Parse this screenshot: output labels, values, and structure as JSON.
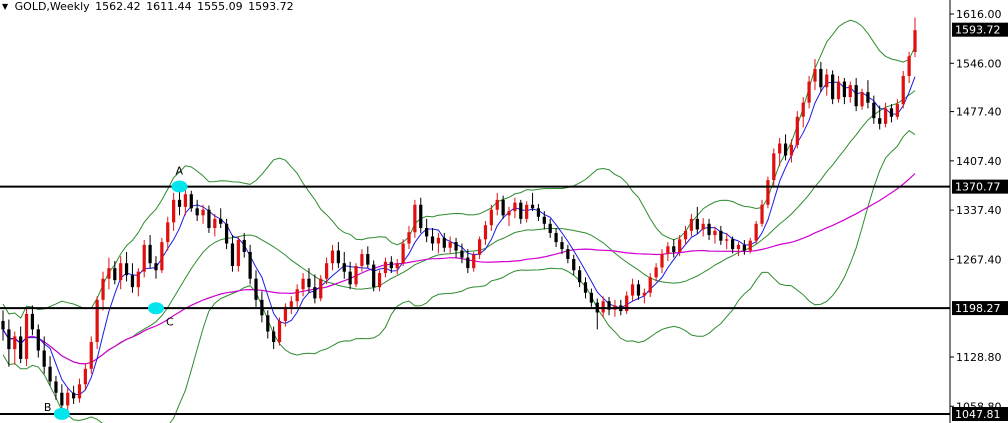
{
  "header": {
    "symbol": "GOLD,Weekly",
    "open": "1562.42",
    "high": "1611.44",
    "low": "1555.09",
    "close": "1593.72"
  },
  "colors": {
    "background": "#ffffff",
    "bull_candle": "#e01010",
    "bear_candle": "#000000",
    "bollinger": "#2e8b2e",
    "fast_ma": "#1a1ae6",
    "slow_ma": "#d100d1",
    "level_line": "#000000",
    "marker": "#00e5ee",
    "price_tag_bg": "#000000",
    "price_tag_text": "#ffffff"
  },
  "chart_data": {
    "type": "candlestick",
    "ylim": [
      1047.81,
      1640.0
    ],
    "y_ticks": [
      "1616.00",
      "1546.00",
      "1477.40",
      "1407.40",
      "1337.40",
      "1267.40",
      "1128.80",
      "1058.80"
    ],
    "current_price_label": "1593.72",
    "horizontal_levels": [
      {
        "price": 1370.77,
        "label": "1370.77"
      },
      {
        "price": 1198.27,
        "label": "1198.27"
      },
      {
        "price": 1047.81,
        "label": "1047.81"
      }
    ],
    "markers": [
      {
        "label": "A",
        "bar": 30,
        "price": 1371
      },
      {
        "label": "C",
        "bar": 26,
        "price": 1198
      },
      {
        "label": "B",
        "bar": 10,
        "price": 1048
      }
    ],
    "candles": [
      [
        1180,
        1195,
        1152,
        1168
      ],
      [
        1168,
        1182,
        1115,
        1140
      ],
      [
        1140,
        1165,
        1118,
        1158
      ],
      [
        1158,
        1172,
        1120,
        1126
      ],
      [
        1126,
        1198,
        1116,
        1190
      ],
      [
        1190,
        1202,
        1160,
        1168
      ],
      [
        1168,
        1175,
        1128,
        1138
      ],
      [
        1138,
        1158,
        1105,
        1115
      ],
      [
        1115,
        1130,
        1088,
        1094
      ],
      [
        1094,
        1102,
        1068,
        1078
      ],
      [
        1078,
        1090,
        1052,
        1060
      ],
      [
        1060,
        1085,
        1052,
        1078
      ],
      [
        1078,
        1088,
        1062,
        1070
      ],
      [
        1070,
        1098,
        1064,
        1090
      ],
      [
        1090,
        1118,
        1082,
        1112
      ],
      [
        1112,
        1158,
        1105,
        1150
      ],
      [
        1150,
        1215,
        1140,
        1210
      ],
      [
        1210,
        1250,
        1195,
        1240
      ],
      [
        1240,
        1270,
        1225,
        1255
      ],
      [
        1255,
        1265,
        1232,
        1238
      ],
      [
        1238,
        1272,
        1225,
        1262
      ],
      [
        1262,
        1278,
        1236,
        1245
      ],
      [
        1245,
        1262,
        1220,
        1228
      ],
      [
        1228,
        1255,
        1215,
        1250
      ],
      [
        1250,
        1295,
        1242,
        1288
      ],
      [
        1288,
        1302,
        1255,
        1262
      ],
      [
        1262,
        1272,
        1240,
        1252
      ],
      [
        1252,
        1298,
        1248,
        1292
      ],
      [
        1292,
        1328,
        1280,
        1320
      ],
      [
        1320,
        1362,
        1308,
        1352
      ],
      [
        1352,
        1374,
        1330,
        1342
      ],
      [
        1342,
        1368,
        1330,
        1360
      ],
      [
        1360,
        1365,
        1335,
        1340
      ],
      [
        1340,
        1352,
        1322,
        1330
      ],
      [
        1330,
        1345,
        1318,
        1338
      ],
      [
        1338,
        1344,
        1305,
        1312
      ],
      [
        1312,
        1332,
        1300,
        1325
      ],
      [
        1325,
        1340,
        1312,
        1318
      ],
      [
        1318,
        1325,
        1282,
        1290
      ],
      [
        1290,
        1302,
        1250,
        1258
      ],
      [
        1258,
        1300,
        1250,
        1295
      ],
      [
        1295,
        1305,
        1270,
        1278
      ],
      [
        1278,
        1288,
        1232,
        1240
      ],
      [
        1240,
        1252,
        1200,
        1210
      ],
      [
        1210,
        1222,
        1178,
        1188
      ],
      [
        1188,
        1195,
        1155,
        1165
      ],
      [
        1165,
        1172,
        1140,
        1150
      ],
      [
        1150,
        1185,
        1145,
        1180
      ],
      [
        1180,
        1205,
        1172,
        1200
      ],
      [
        1200,
        1215,
        1190,
        1208
      ],
      [
        1208,
        1232,
        1200,
        1225
      ],
      [
        1225,
        1248,
        1215,
        1240
      ],
      [
        1240,
        1255,
        1220,
        1228
      ],
      [
        1228,
        1246,
        1205,
        1212
      ],
      [
        1212,
        1245,
        1208,
        1240
      ],
      [
        1240,
        1270,
        1232,
        1262
      ],
      [
        1262,
        1288,
        1252,
        1280
      ],
      [
        1280,
        1292,
        1255,
        1262
      ],
      [
        1262,
        1278,
        1240,
        1250
      ],
      [
        1250,
        1264,
        1225,
        1232
      ],
      [
        1232,
        1262,
        1228,
        1258
      ],
      [
        1258,
        1282,
        1250,
        1275
      ],
      [
        1275,
        1286,
        1255,
        1260
      ],
      [
        1260,
        1266,
        1222,
        1228
      ],
      [
        1228,
        1252,
        1222,
        1248
      ],
      [
        1248,
        1270,
        1242,
        1264
      ],
      [
        1264,
        1272,
        1248,
        1255
      ],
      [
        1255,
        1268,
        1246,
        1262
      ],
      [
        1262,
        1296,
        1258,
        1290
      ],
      [
        1290,
        1315,
        1282,
        1306
      ],
      [
        1306,
        1352,
        1298,
        1345
      ],
      [
        1345,
        1355,
        1305,
        1312
      ],
      [
        1312,
        1325,
        1292,
        1300
      ],
      [
        1300,
        1312,
        1280,
        1290
      ],
      [
        1290,
        1305,
        1276,
        1298
      ],
      [
        1298,
        1305,
        1278,
        1284
      ],
      [
        1284,
        1300,
        1276,
        1292
      ],
      [
        1292,
        1298,
        1270,
        1280
      ],
      [
        1280,
        1290,
        1262,
        1270
      ],
      [
        1270,
        1282,
        1248,
        1255
      ],
      [
        1255,
        1278,
        1250,
        1274
      ],
      [
        1274,
        1300,
        1268,
        1296
      ],
      [
        1296,
        1322,
        1288,
        1316
      ],
      [
        1316,
        1345,
        1308,
        1338
      ],
      [
        1338,
        1362,
        1330,
        1352
      ],
      [
        1352,
        1358,
        1325,
        1330
      ],
      [
        1330,
        1342,
        1315,
        1336
      ],
      [
        1336,
        1355,
        1326,
        1348
      ],
      [
        1348,
        1352,
        1318,
        1325
      ],
      [
        1325,
        1350,
        1320,
        1345
      ],
      [
        1345,
        1362,
        1336,
        1340
      ],
      [
        1340,
        1346,
        1322,
        1328
      ],
      [
        1328,
        1336,
        1310,
        1318
      ],
      [
        1318,
        1325,
        1298,
        1305
      ],
      [
        1305,
        1312,
        1285,
        1292
      ],
      [
        1292,
        1300,
        1275,
        1282
      ],
      [
        1282,
        1288,
        1262,
        1268
      ],
      [
        1268,
        1274,
        1245,
        1252
      ],
      [
        1252,
        1258,
        1228,
        1235
      ],
      [
        1235,
        1242,
        1212,
        1220
      ],
      [
        1220,
        1226,
        1200,
        1206
      ],
      [
        1206,
        1212,
        1168,
        1192
      ],
      [
        1192,
        1215,
        1185,
        1208
      ],
      [
        1208,
        1214,
        1188,
        1196
      ],
      [
        1196,
        1210,
        1186,
        1202
      ],
      [
        1202,
        1210,
        1188,
        1194
      ],
      [
        1194,
        1222,
        1190,
        1216
      ],
      [
        1216,
        1240,
        1208,
        1232
      ],
      [
        1232,
        1238,
        1210,
        1216
      ],
      [
        1216,
        1226,
        1205,
        1220
      ],
      [
        1220,
        1248,
        1214,
        1242
      ],
      [
        1242,
        1262,
        1236,
        1256
      ],
      [
        1256,
        1282,
        1248,
        1275
      ],
      [
        1275,
        1292,
        1265,
        1286
      ],
      [
        1286,
        1296,
        1270,
        1278
      ],
      [
        1278,
        1302,
        1272,
        1296
      ],
      [
        1296,
        1315,
        1288,
        1308
      ],
      [
        1308,
        1332,
        1300,
        1325
      ],
      [
        1325,
        1342,
        1304,
        1310
      ],
      [
        1310,
        1326,
        1300,
        1318
      ],
      [
        1318,
        1325,
        1295,
        1302
      ],
      [
        1302,
        1314,
        1290,
        1308
      ],
      [
        1308,
        1315,
        1288,
        1294
      ],
      [
        1294,
        1305,
        1282,
        1296
      ],
      [
        1296,
        1300,
        1276,
        1282
      ],
      [
        1282,
        1292,
        1272,
        1288
      ],
      [
        1288,
        1295,
        1274,
        1280
      ],
      [
        1280,
        1298,
        1276,
        1294
      ],
      [
        1294,
        1322,
        1290,
        1318
      ],
      [
        1318,
        1352,
        1314,
        1345
      ],
      [
        1345,
        1385,
        1340,
        1380
      ],
      [
        1380,
        1425,
        1372,
        1418
      ],
      [
        1418,
        1440,
        1400,
        1432
      ],
      [
        1432,
        1445,
        1408,
        1415
      ],
      [
        1415,
        1438,
        1405,
        1430
      ],
      [
        1430,
        1478,
        1425,
        1470
      ],
      [
        1470,
        1498,
        1455,
        1490
      ],
      [
        1490,
        1528,
        1482,
        1520
      ],
      [
        1520,
        1552,
        1508,
        1538
      ],
      [
        1538,
        1548,
        1505,
        1512
      ],
      [
        1512,
        1538,
        1500,
        1530
      ],
      [
        1530,
        1536,
        1488,
        1495
      ],
      [
        1495,
        1528,
        1490,
        1520
      ],
      [
        1520,
        1525,
        1488,
        1498
      ],
      [
        1498,
        1520,
        1490,
        1515
      ],
      [
        1515,
        1525,
        1478,
        1485
      ],
      [
        1485,
        1510,
        1480,
        1505
      ],
      [
        1505,
        1522,
        1482,
        1490
      ],
      [
        1490,
        1500,
        1460,
        1468
      ],
      [
        1468,
        1486,
        1452,
        1460
      ],
      [
        1460,
        1490,
        1455,
        1482
      ],
      [
        1482,
        1488,
        1462,
        1470
      ],
      [
        1470,
        1495,
        1466,
        1488
      ],
      [
        1488,
        1535,
        1482,
        1528
      ],
      [
        1528,
        1562,
        1518,
        1556
      ],
      [
        1562,
        1611,
        1555,
        1593
      ]
    ],
    "ma_fast_period": 5,
    "ma_slow_period": 50,
    "bollinger_period": 20,
    "bollinger_width": 2
  }
}
